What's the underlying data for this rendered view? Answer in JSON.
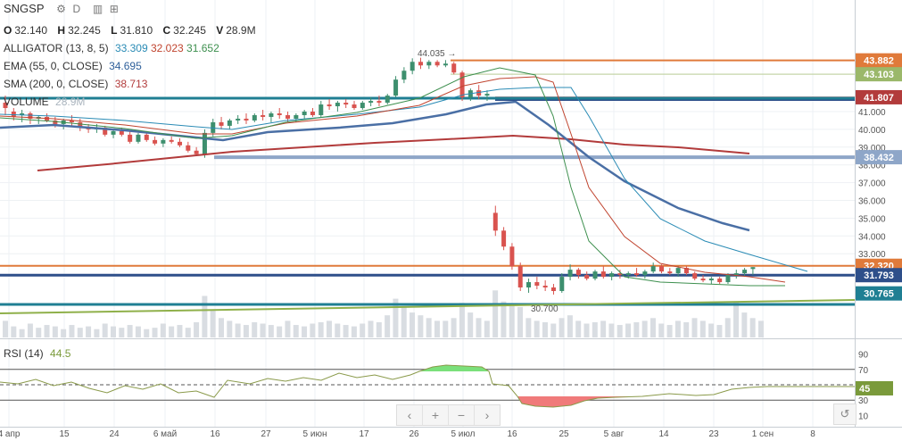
{
  "header": {
    "symbol": "SNGSP",
    "interval": "D"
  },
  "ohlc": {
    "o_label": "O",
    "o": "32.140",
    "h_label": "H",
    "h": "32.245",
    "l_label": "L",
    "l": "31.810",
    "c_label": "C",
    "c": "32.245",
    "v_label": "V",
    "v": "28.9M"
  },
  "indicators": {
    "alligator": {
      "label": "ALLIGATOR (13, 8, 5)",
      "jaw": "33.309",
      "teeth": "32.023",
      "lips": "31.652"
    },
    "ema": {
      "label": "EMA (55, 0, CLOSE)",
      "value": "34.695"
    },
    "sma": {
      "label": "SMA (200, 0, CLOSE)",
      "value": "38.713"
    },
    "volume": {
      "label": "VOLUME",
      "value": "28.9M"
    },
    "rsi": {
      "label": "RSI (14)",
      "value": "44.5"
    }
  },
  "price_tags": [
    {
      "text": "43.882",
      "color": "#e07a3a",
      "value": 43.882
    },
    {
      "text": "43.103",
      "color": "#9bb86a",
      "value": 43.103
    },
    {
      "text": "41.807",
      "color": "#b23b3b",
      "value": 41.807
    },
    {
      "text": "38.432",
      "color": "#8ea6c8",
      "value": 38.432
    },
    {
      "text": "32.320",
      "color": "#e07a3a",
      "value": 32.32
    },
    {
      "text": "31.793",
      "color": "#2e4f8a",
      "value": 31.793
    },
    {
      "text": "30.765",
      "color": "#1f7f93",
      "value": 30.765
    }
  ],
  "rsi_tag": {
    "text": "45",
    "color": "#7a9a3b"
  },
  "annotations": {
    "high": "44.035",
    "low": "30.700"
  },
  "nav": {
    "left": "‹",
    "plus": "+",
    "minus": "−",
    "right": "›",
    "reset": "↺"
  },
  "colors": {
    "up": "#3d8f6e",
    "down": "#d9534f",
    "volume": "#d9dde2",
    "grid": "#eef1f4",
    "text": "#333333"
  },
  "chart_data": {
    "type": "candlestick",
    "y_axis_ticks": [
      "41.000",
      "40.000",
      "39.000",
      "38.000",
      "37.000",
      "36.000",
      "35.000",
      "34.000",
      "33.000"
    ],
    "ylim": [
      30.0,
      45.4
    ],
    "x_axis_ticks": [
      "4 апр",
      "15",
      "24",
      "6 май",
      "16",
      "27",
      "5 июн",
      "17",
      "26",
      "5 июл",
      "16",
      "25",
      "5 авг",
      "14",
      "23",
      "1 сен",
      "8"
    ],
    "rsi_axis_ticks": [
      "90",
      "70",
      "50",
      "30",
      "10"
    ],
    "rsi_levels": [
      70,
      50,
      30
    ],
    "candles": [
      {
        "o": 41.5,
        "h": 41.9,
        "l": 40.8,
        "c": 41.2
      },
      {
        "o": 41.0,
        "h": 41.2,
        "l": 40.5,
        "c": 40.7
      },
      {
        "o": 40.8,
        "h": 41.1,
        "l": 40.4,
        "c": 40.9
      },
      {
        "o": 40.9,
        "h": 41.0,
        "l": 40.3,
        "c": 40.6
      },
      {
        "o": 40.6,
        "h": 40.8,
        "l": 40.3,
        "c": 40.7
      },
      {
        "o": 40.7,
        "h": 40.9,
        "l": 40.4,
        "c": 40.5
      },
      {
        "o": 40.5,
        "h": 40.7,
        "l": 40.1,
        "c": 40.3
      },
      {
        "o": 40.3,
        "h": 40.6,
        "l": 40.0,
        "c": 40.5
      },
      {
        "o": 40.5,
        "h": 40.8,
        "l": 40.2,
        "c": 40.4
      },
      {
        "o": 40.4,
        "h": 40.6,
        "l": 39.9,
        "c": 40.1
      },
      {
        "o": 40.1,
        "h": 40.3,
        "l": 39.8,
        "c": 40.0
      },
      {
        "o": 40.0,
        "h": 40.3,
        "l": 39.8,
        "c": 40.1
      },
      {
        "o": 40.1,
        "h": 40.2,
        "l": 39.6,
        "c": 39.7
      },
      {
        "o": 39.7,
        "h": 40.0,
        "l": 39.5,
        "c": 39.9
      },
      {
        "o": 39.9,
        "h": 40.1,
        "l": 39.6,
        "c": 39.7
      },
      {
        "o": 39.7,
        "h": 39.9,
        "l": 39.2,
        "c": 39.3
      },
      {
        "o": 39.3,
        "h": 39.8,
        "l": 39.2,
        "c": 39.7
      },
      {
        "o": 39.7,
        "h": 39.9,
        "l": 39.3,
        "c": 39.4
      },
      {
        "o": 39.4,
        "h": 39.6,
        "l": 39.1,
        "c": 39.2
      },
      {
        "o": 39.2,
        "h": 39.5,
        "l": 39.0,
        "c": 39.4
      },
      {
        "o": 39.4,
        "h": 39.6,
        "l": 39.2,
        "c": 39.3
      },
      {
        "o": 39.3,
        "h": 39.5,
        "l": 39.0,
        "c": 39.1
      },
      {
        "o": 39.1,
        "h": 39.3,
        "l": 38.7,
        "c": 38.8
      },
      {
        "o": 38.8,
        "h": 39.0,
        "l": 38.5,
        "c": 38.6
      },
      {
        "o": 38.6,
        "h": 40.0,
        "l": 38.4,
        "c": 39.8
      },
      {
        "o": 39.8,
        "h": 40.6,
        "l": 39.6,
        "c": 40.4
      },
      {
        "o": 40.4,
        "h": 40.7,
        "l": 40.0,
        "c": 40.2
      },
      {
        "o": 40.2,
        "h": 40.6,
        "l": 40.0,
        "c": 40.5
      },
      {
        "o": 40.5,
        "h": 40.8,
        "l": 40.3,
        "c": 40.6
      },
      {
        "o": 40.6,
        "h": 40.9,
        "l": 40.3,
        "c": 40.5
      },
      {
        "o": 40.5,
        "h": 40.9,
        "l": 40.4,
        "c": 40.8
      },
      {
        "o": 40.8,
        "h": 41.1,
        "l": 40.5,
        "c": 40.7
      },
      {
        "o": 40.7,
        "h": 41.0,
        "l": 40.4,
        "c": 40.9
      },
      {
        "o": 40.9,
        "h": 41.2,
        "l": 40.6,
        "c": 40.8
      },
      {
        "o": 40.8,
        "h": 41.0,
        "l": 40.4,
        "c": 40.6
      },
      {
        "o": 40.6,
        "h": 40.9,
        "l": 40.4,
        "c": 40.8
      },
      {
        "o": 40.8,
        "h": 41.1,
        "l": 40.6,
        "c": 41.0
      },
      {
        "o": 41.0,
        "h": 41.2,
        "l": 40.7,
        "c": 40.8
      },
      {
        "o": 40.8,
        "h": 41.6,
        "l": 40.7,
        "c": 41.4
      },
      {
        "o": 41.4,
        "h": 41.7,
        "l": 41.1,
        "c": 41.3
      },
      {
        "o": 41.3,
        "h": 41.6,
        "l": 41.0,
        "c": 41.5
      },
      {
        "o": 41.5,
        "h": 41.7,
        "l": 41.2,
        "c": 41.4
      },
      {
        "o": 41.4,
        "h": 41.6,
        "l": 41.1,
        "c": 41.2
      },
      {
        "o": 41.2,
        "h": 41.6,
        "l": 41.1,
        "c": 41.5
      },
      {
        "o": 41.5,
        "h": 41.8,
        "l": 41.3,
        "c": 41.6
      },
      {
        "o": 41.6,
        "h": 41.9,
        "l": 41.3,
        "c": 41.5
      },
      {
        "o": 41.5,
        "h": 42.0,
        "l": 41.4,
        "c": 41.9
      },
      {
        "o": 41.9,
        "h": 43.0,
        "l": 41.8,
        "c": 42.8
      },
      {
        "o": 42.8,
        "h": 43.5,
        "l": 42.6,
        "c": 43.3
      },
      {
        "o": 43.3,
        "h": 44.0,
        "l": 43.1,
        "c": 43.8
      },
      {
        "o": 43.8,
        "h": 44.035,
        "l": 43.4,
        "c": 43.6
      },
      {
        "o": 43.6,
        "h": 43.9,
        "l": 43.4,
        "c": 43.8
      },
      {
        "o": 43.8,
        "h": 43.9,
        "l": 43.5,
        "c": 43.6
      },
      {
        "o": 43.6,
        "h": 43.9,
        "l": 43.5,
        "c": 43.7
      },
      {
        "o": 43.7,
        "h": 43.8,
        "l": 43.1,
        "c": 43.2
      },
      {
        "o": 43.2,
        "h": 43.3,
        "l": 41.6,
        "c": 41.8
      },
      {
        "o": 41.8,
        "h": 42.3,
        "l": 41.6,
        "c": 42.2
      },
      {
        "o": 42.2,
        "h": 42.5,
        "l": 41.7,
        "c": 41.9
      },
      {
        "o": 41.9,
        "h": 42.2,
        "l": 41.6,
        "c": 42.0
      },
      {
        "o": 35.3,
        "h": 35.7,
        "l": 34.0,
        "c": 34.3
      },
      {
        "o": 34.3,
        "h": 34.5,
        "l": 33.2,
        "c": 33.4
      },
      {
        "o": 33.4,
        "h": 33.6,
        "l": 32.1,
        "c": 32.3
      },
      {
        "o": 32.3,
        "h": 32.5,
        "l": 30.9,
        "c": 31.1
      },
      {
        "o": 31.1,
        "h": 31.6,
        "l": 30.8,
        "c": 31.4
      },
      {
        "o": 31.4,
        "h": 31.7,
        "l": 31.0,
        "c": 31.2
      },
      {
        "o": 31.2,
        "h": 31.5,
        "l": 30.9,
        "c": 31.1
      },
      {
        "o": 31.1,
        "h": 31.3,
        "l": 30.7,
        "c": 30.9
      },
      {
        "o": 30.9,
        "h": 31.9,
        "l": 30.8,
        "c": 31.7
      },
      {
        "o": 31.7,
        "h": 32.4,
        "l": 31.5,
        "c": 32.1
      },
      {
        "o": 32.1,
        "h": 32.2,
        "l": 31.6,
        "c": 31.8
      },
      {
        "o": 31.8,
        "h": 32.0,
        "l": 31.5,
        "c": 31.6
      },
      {
        "o": 31.6,
        "h": 32.1,
        "l": 31.5,
        "c": 32.0
      },
      {
        "o": 32.0,
        "h": 32.3,
        "l": 31.6,
        "c": 31.7
      },
      {
        "o": 31.7,
        "h": 32.0,
        "l": 31.5,
        "c": 31.9
      },
      {
        "o": 31.9,
        "h": 32.1,
        "l": 31.6,
        "c": 31.8
      },
      {
        "o": 31.8,
        "h": 32.0,
        "l": 31.6,
        "c": 31.9
      },
      {
        "o": 31.9,
        "h": 32.2,
        "l": 31.7,
        "c": 31.8
      },
      {
        "o": 31.8,
        "h": 32.1,
        "l": 31.6,
        "c": 32.0
      },
      {
        "o": 32.0,
        "h": 32.5,
        "l": 31.9,
        "c": 32.3
      },
      {
        "o": 32.3,
        "h": 32.4,
        "l": 31.9,
        "c": 32.0
      },
      {
        "o": 32.0,
        "h": 32.2,
        "l": 31.8,
        "c": 31.9
      },
      {
        "o": 31.9,
        "h": 32.3,
        "l": 31.7,
        "c": 32.2
      },
      {
        "o": 32.2,
        "h": 32.3,
        "l": 31.8,
        "c": 31.9
      },
      {
        "o": 31.9,
        "h": 32.0,
        "l": 31.5,
        "c": 31.6
      },
      {
        "o": 31.6,
        "h": 31.8,
        "l": 31.4,
        "c": 31.5
      },
      {
        "o": 31.5,
        "h": 31.7,
        "l": 31.3,
        "c": 31.6
      },
      {
        "o": 31.6,
        "h": 31.7,
        "l": 31.3,
        "c": 31.4
      },
      {
        "o": 31.4,
        "h": 31.9,
        "l": 31.3,
        "c": 31.8
      },
      {
        "o": 31.8,
        "h": 32.1,
        "l": 31.6,
        "c": 31.9
      },
      {
        "o": 31.9,
        "h": 32.2,
        "l": 31.7,
        "c": 32.1
      },
      {
        "o": 32.14,
        "h": 32.245,
        "l": 31.81,
        "c": 32.245
      }
    ]
  }
}
